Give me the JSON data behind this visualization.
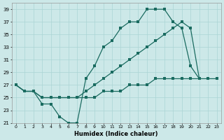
{
  "xlabel": "Humidex (Indice chaleur)",
  "bg_color": "#cce8e8",
  "line_color": "#1a6b60",
  "grid_color": "#aad4d4",
  "xlim": [
    -0.5,
    23.5
  ],
  "ylim": [
    21,
    40
  ],
  "yticks": [
    21,
    23,
    25,
    27,
    29,
    31,
    33,
    35,
    37,
    39
  ],
  "xticks": [
    0,
    1,
    2,
    3,
    4,
    5,
    6,
    7,
    8,
    9,
    10,
    11,
    12,
    13,
    14,
    15,
    16,
    17,
    18,
    19,
    20,
    21,
    22,
    23
  ],
  "series1_x": [
    0,
    1,
    2,
    3,
    4,
    5,
    6,
    7,
    8,
    9,
    10,
    11,
    12,
    13,
    14,
    15,
    16,
    17,
    18,
    19,
    20,
    21
  ],
  "series1_y": [
    27,
    26,
    26,
    24,
    24,
    22,
    21,
    21,
    28,
    30,
    33,
    34,
    36,
    37,
    37,
    39,
    39,
    39,
    37,
    36,
    30,
    28
  ],
  "series2_x": [
    0,
    1,
    2,
    3,
    4,
    5,
    6,
    7,
    8,
    9,
    10,
    11,
    12,
    13,
    14,
    15,
    16,
    17,
    18,
    19,
    20,
    21
  ],
  "series2_y": [
    27,
    26,
    26,
    25,
    25,
    25,
    25,
    25,
    26,
    27,
    28,
    29,
    30,
    31,
    32,
    33,
    34,
    35,
    36,
    37,
    36,
    28
  ],
  "series3_x": [
    0,
    1,
    2,
    3,
    4,
    5,
    6,
    7,
    8,
    9,
    10,
    11,
    12,
    13,
    14,
    15,
    16,
    17,
    18,
    19,
    20,
    21,
    22,
    23
  ],
  "series3_y": [
    27,
    26,
    26,
    25,
    25,
    25,
    25,
    25,
    25,
    25,
    26,
    26,
    26,
    27,
    27,
    27,
    28,
    28,
    28,
    28,
    28,
    28,
    28,
    28
  ]
}
